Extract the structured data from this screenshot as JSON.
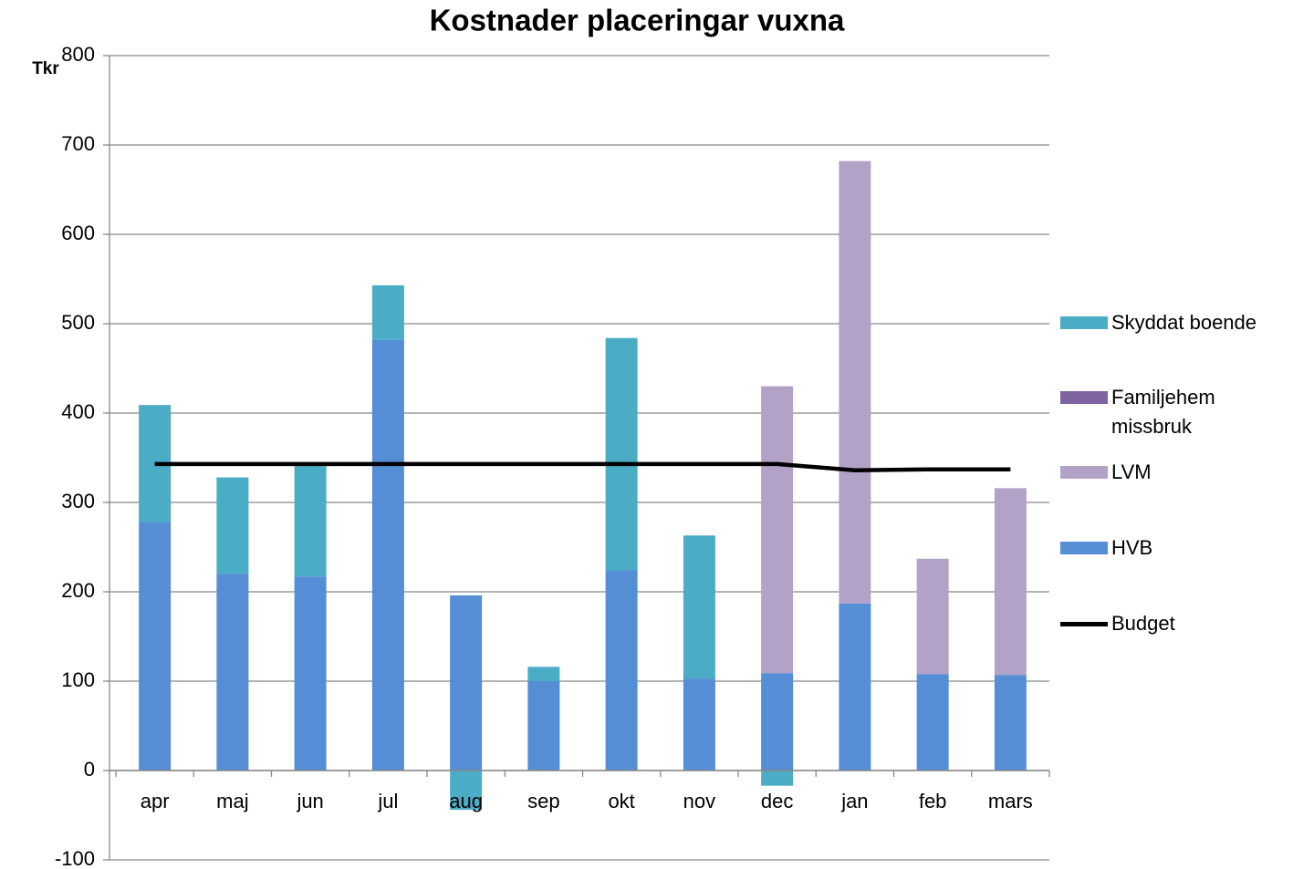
{
  "chart_data": {
    "type": "bar",
    "stacked": true,
    "title": "Kostnader placeringar vuxna",
    "y_label": "Tkr",
    "categories": [
      "apr",
      "maj",
      "jun",
      "jul",
      "aug",
      "sep",
      "okt",
      "nov",
      "dec",
      "jan",
      "feb",
      "mars"
    ],
    "series": [
      {
        "name": "HVB",
        "color": "#558ed5",
        "values": [
          278,
          220,
          217,
          482,
          196,
          100,
          224,
          103,
          109,
          187,
          108,
          107
        ]
      },
      {
        "name": "LVM",
        "color": "#b3a2c7",
        "values": [
          0,
          0,
          0,
          0,
          0,
          0,
          0,
          0,
          321,
          495,
          129,
          209
        ]
      },
      {
        "name": "Familjehem missbruk",
        "color": "#8064a2",
        "values": [
          0,
          0,
          0,
          0,
          0,
          0,
          0,
          0,
          0,
          0,
          0,
          0
        ]
      },
      {
        "name": "Skyddat boende",
        "color": "#4bacc6",
        "values": [
          131,
          108,
          125,
          61,
          -44,
          16,
          260,
          160,
          -17,
          0,
          0,
          0
        ]
      },
      {
        "name": "Budget",
        "type": "line",
        "color": "#000000",
        "values": [
          343,
          343,
          343,
          343,
          343,
          343,
          343,
          343,
          343,
          336,
          337,
          337
        ]
      }
    ],
    "ylim": [
      -100,
      800
    ],
    "yticks": [
      -100,
      0,
      100,
      200,
      300,
      400,
      500,
      600,
      700,
      800
    ],
    "grid": true,
    "legend": "right"
  }
}
